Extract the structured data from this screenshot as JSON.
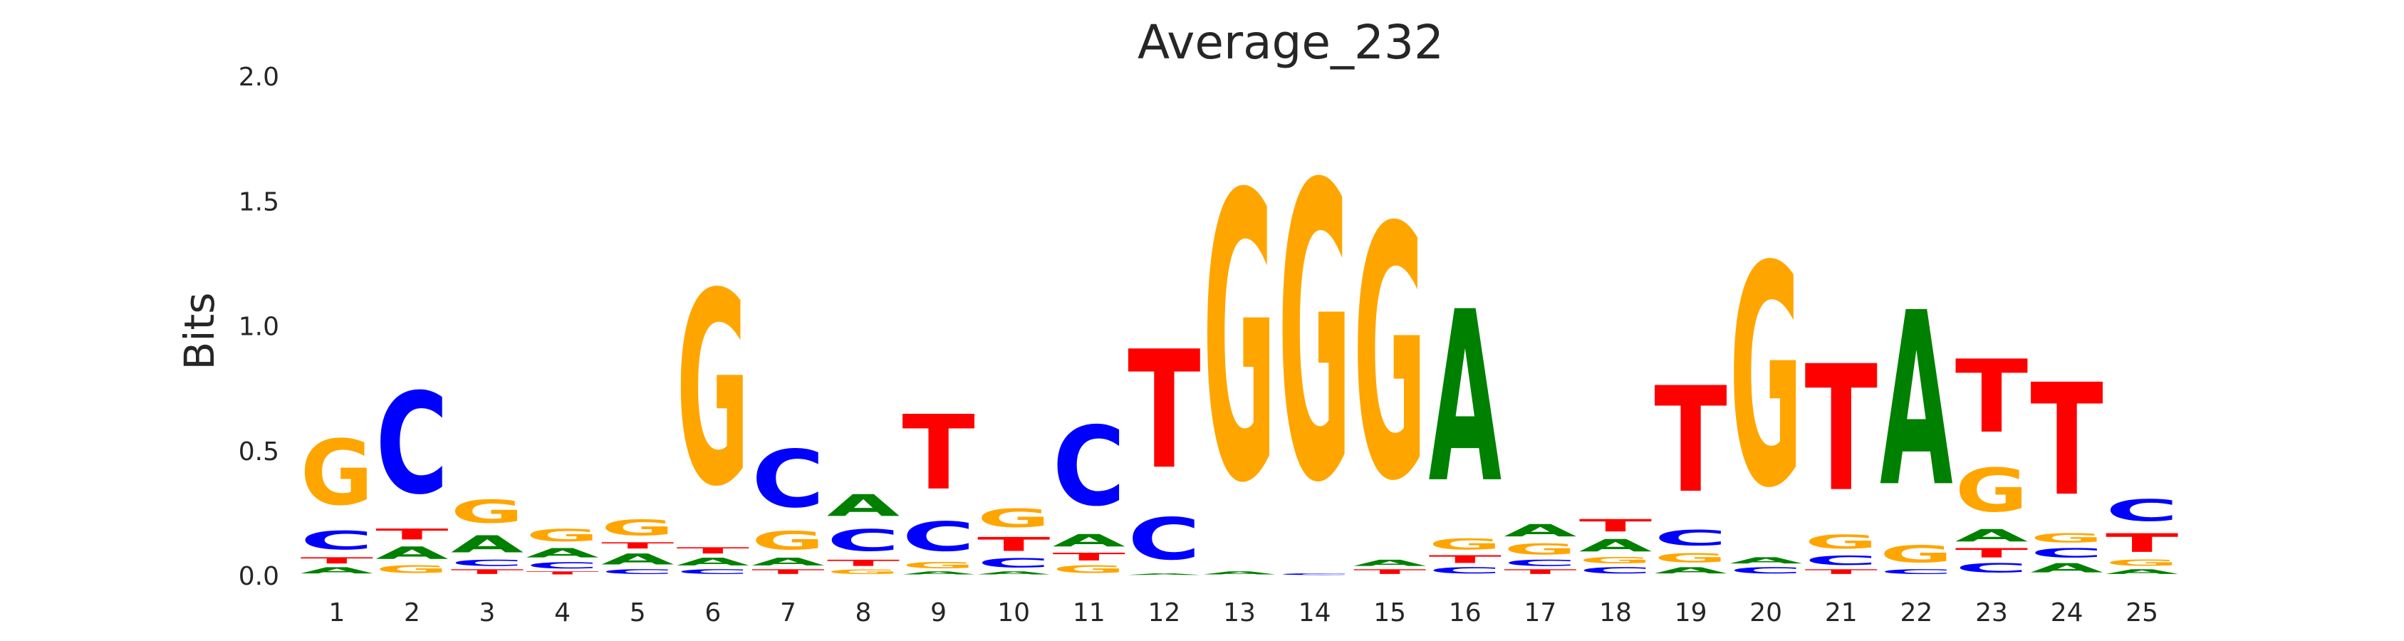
{
  "chart_data": {
    "type": "sequence-logo",
    "title": "Average_232",
    "ylabel": "Bits",
    "xlabel": "",
    "ylim": [
      0,
      2.0
    ],
    "yticks": [
      0.0,
      0.5,
      1.0,
      1.5,
      2.0
    ],
    "ytick_labels": [
      "0.0",
      "0.5",
      "1.0",
      "1.5",
      "2.0"
    ],
    "grid": false,
    "colors": {
      "A": "#008000",
      "C": "#0000ff",
      "G": "#ffa500",
      "T": "#ff0000"
    },
    "positions": [
      {
        "label": "1",
        "stack": [
          [
            "A",
            0.04
          ],
          [
            "T",
            0.04
          ],
          [
            "C",
            0.12
          ],
          [
            "G",
            0.42
          ]
        ]
      },
      {
        "label": "2",
        "stack": [
          [
            "G",
            0.05
          ],
          [
            "A",
            0.08
          ],
          [
            "T",
            0.07
          ],
          [
            "C",
            0.65
          ]
        ]
      },
      {
        "label": "3",
        "stack": [
          [
            "T",
            0.03
          ],
          [
            "C",
            0.04
          ],
          [
            "A",
            0.11
          ],
          [
            "G",
            0.15
          ]
        ]
      },
      {
        "label": "4",
        "stack": [
          [
            "T",
            0.02
          ],
          [
            "C",
            0.04
          ],
          [
            "A",
            0.06
          ],
          [
            "G",
            0.08
          ]
        ]
      },
      {
        "label": "5",
        "stack": [
          [
            "C",
            0.03
          ],
          [
            "A",
            0.07
          ],
          [
            "T",
            0.04
          ],
          [
            "G",
            0.1
          ]
        ]
      },
      {
        "label": "6",
        "stack": [
          [
            "C",
            0.03
          ],
          [
            "A",
            0.05
          ],
          [
            "T",
            0.04
          ],
          [
            "G",
            1.24
          ]
        ]
      },
      {
        "label": "7",
        "stack": [
          [
            "T",
            0.03
          ],
          [
            "A",
            0.05
          ],
          [
            "G",
            0.12
          ],
          [
            "C",
            0.37
          ]
        ]
      },
      {
        "label": "8",
        "stack": [
          [
            "G",
            0.03
          ],
          [
            "T",
            0.04
          ],
          [
            "C",
            0.14
          ],
          [
            "A",
            0.14
          ]
        ]
      },
      {
        "label": "9",
        "stack": [
          [
            "A",
            0.02
          ],
          [
            "G",
            0.04
          ],
          [
            "C",
            0.19
          ],
          [
            "T",
            0.48
          ]
        ]
      },
      {
        "label": "10",
        "stack": [
          [
            "A",
            0.02
          ],
          [
            "C",
            0.06
          ],
          [
            "T",
            0.09
          ],
          [
            "G",
            0.12
          ]
        ]
      },
      {
        "label": "11",
        "stack": [
          [
            "G",
            0.05
          ],
          [
            "T",
            0.05
          ],
          [
            "A",
            0.08
          ],
          [
            "C",
            0.51
          ]
        ]
      },
      {
        "label": "12",
        "stack": [
          [
            "A",
            0.01
          ],
          [
            "C",
            0.27
          ],
          [
            "T",
            0.76
          ]
        ]
      },
      {
        "label": "13",
        "stack": [
          [
            "A",
            0.02
          ],
          [
            "G",
            1.84
          ]
        ]
      },
      {
        "label": "14",
        "stack": [
          [
            "C",
            0.01
          ],
          [
            "G",
            1.9
          ]
        ]
      },
      {
        "label": "15",
        "stack": [
          [
            "T",
            0.03
          ],
          [
            "A",
            0.04
          ],
          [
            "G",
            1.62
          ]
        ]
      },
      {
        "label": "16",
        "stack": [
          [
            "C",
            0.04
          ],
          [
            "T",
            0.05
          ],
          [
            "G",
            0.07
          ],
          [
            "A",
            1.1
          ]
        ]
      },
      {
        "label": "17",
        "stack": [
          [
            "T",
            0.03
          ],
          [
            "C",
            0.04
          ],
          [
            "G",
            0.07
          ],
          [
            "A",
            0.08
          ]
        ]
      },
      {
        "label": "18",
        "stack": [
          [
            "C",
            0.04
          ],
          [
            "G",
            0.04
          ],
          [
            "A",
            0.08
          ],
          [
            "T",
            0.08
          ]
        ]
      },
      {
        "label": "19",
        "stack": [
          [
            "A",
            0.04
          ],
          [
            "G",
            0.06
          ],
          [
            "C",
            0.1
          ],
          [
            "T",
            0.68
          ]
        ]
      },
      {
        "label": "20",
        "stack": [
          [
            "C",
            0.04
          ],
          [
            "A",
            0.04
          ],
          [
            "G",
            1.42
          ]
        ]
      },
      {
        "label": "21",
        "stack": [
          [
            "T",
            0.03
          ],
          [
            "C",
            0.06
          ],
          [
            "G",
            0.09
          ],
          [
            "T",
            0.81
          ]
        ]
      },
      {
        "label": "22",
        "stack": [
          [
            "C",
            0.03
          ],
          [
            "G",
            0.11
          ],
          [
            "A",
            1.12
          ]
        ]
      },
      {
        "label": "23",
        "stack": [
          [
            "C",
            0.06
          ],
          [
            "T",
            0.06
          ],
          [
            "A",
            0.08
          ],
          [
            "G",
            0.28
          ],
          [
            "T",
            0.47
          ]
        ]
      },
      {
        "label": "24",
        "stack": [
          [
            "A",
            0.06
          ],
          [
            "C",
            0.06
          ],
          [
            "G",
            0.06
          ],
          [
            "T",
            0.72
          ]
        ]
      },
      {
        "label": "25",
        "stack": [
          [
            "A",
            0.03
          ],
          [
            "G",
            0.04
          ],
          [
            "T",
            0.12
          ],
          [
            "C",
            0.14
          ]
        ]
      }
    ]
  }
}
